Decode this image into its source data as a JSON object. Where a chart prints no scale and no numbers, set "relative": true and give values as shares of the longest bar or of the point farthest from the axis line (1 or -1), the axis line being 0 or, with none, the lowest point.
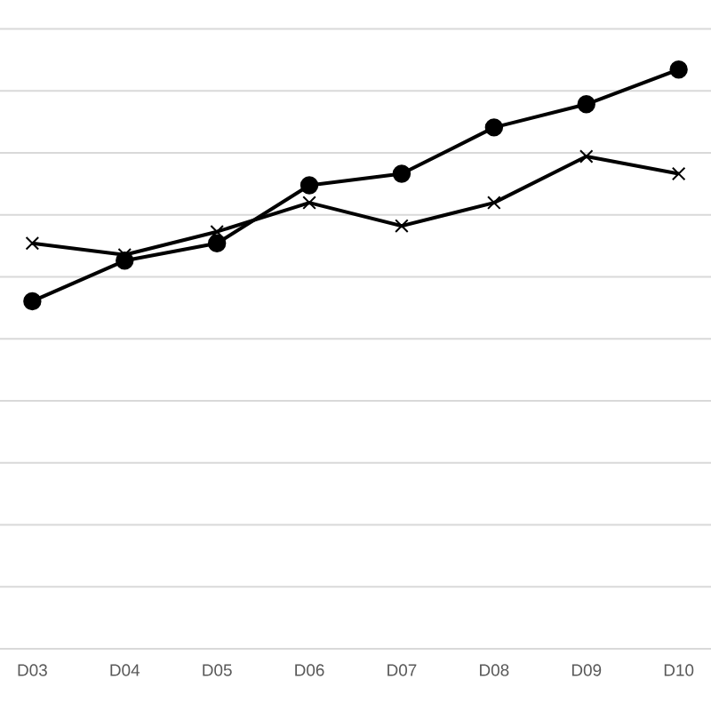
{
  "chart_data": {
    "type": "line",
    "relative": true,
    "grid": "y",
    "categories": [
      "D03",
      "D04",
      "D05",
      "D06",
      "D07",
      "D08",
      "D09",
      "D10"
    ],
    "series": [
      {
        "color": "#000000",
        "marker": "circle",
        "values": [
          0.6,
          0.67,
          0.7,
          0.8,
          0.82,
          0.9,
          0.94,
          1.0
        ]
      },
      {
        "color": "#000000",
        "marker": "cross",
        "values": [
          0.7,
          0.68,
          0.72,
          0.77,
          0.73,
          0.77,
          0.85,
          0.82
        ]
      }
    ]
  }
}
